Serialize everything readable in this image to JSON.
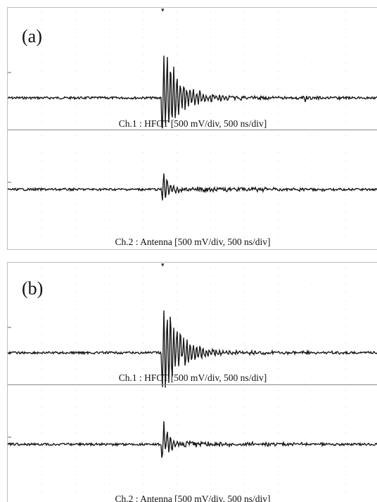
{
  "panels": [
    {
      "label": "(a)",
      "channels": [
        {
          "caption": "Ch.1 : HFCT [500 mV/div, 500 ns/div]"
        },
        {
          "caption": "Ch.2 : Antenna [500 mV/div, 500 ns/div]"
        }
      ]
    },
    {
      "label": "(b)",
      "channels": [
        {
          "caption": "Ch.1 : HFCT [500 mV/div, 500 ns/div]"
        },
        {
          "caption": "Ch.2 : Antenna [500 mV/div, 500 ns/div]"
        }
      ]
    }
  ],
  "chart_data": [
    {
      "type": "line",
      "title": "(a)",
      "series": [
        {
          "name": "Ch.1 : HFCT",
          "x_unit": "div",
          "scale": "500 mV/div, 500 ns/div",
          "pulse_onset_div": 5.2,
          "peak_div": 1.6,
          "trailing_pulse_div": 10.0
        },
        {
          "name": "Ch.2 : Antenna",
          "x_unit": "div",
          "scale": "500 mV/div, 500 ns/div",
          "pulse_onset_div": 5.2,
          "peak_div": 0.6
        }
      ]
    },
    {
      "type": "line",
      "title": "(b)",
      "series": [
        {
          "name": "Ch.1 : HFCT",
          "x_unit": "div",
          "scale": "500 mV/div, 500 ns/div",
          "pulse_onset_div": 5.2,
          "peak_div": 1.6
        },
        {
          "name": "Ch.2 : Antenna",
          "x_unit": "div",
          "scale": "500 mV/div, 500 ns/div",
          "pulse_onset_div": 5.2,
          "peak_div": 1.0
        }
      ]
    }
  ]
}
